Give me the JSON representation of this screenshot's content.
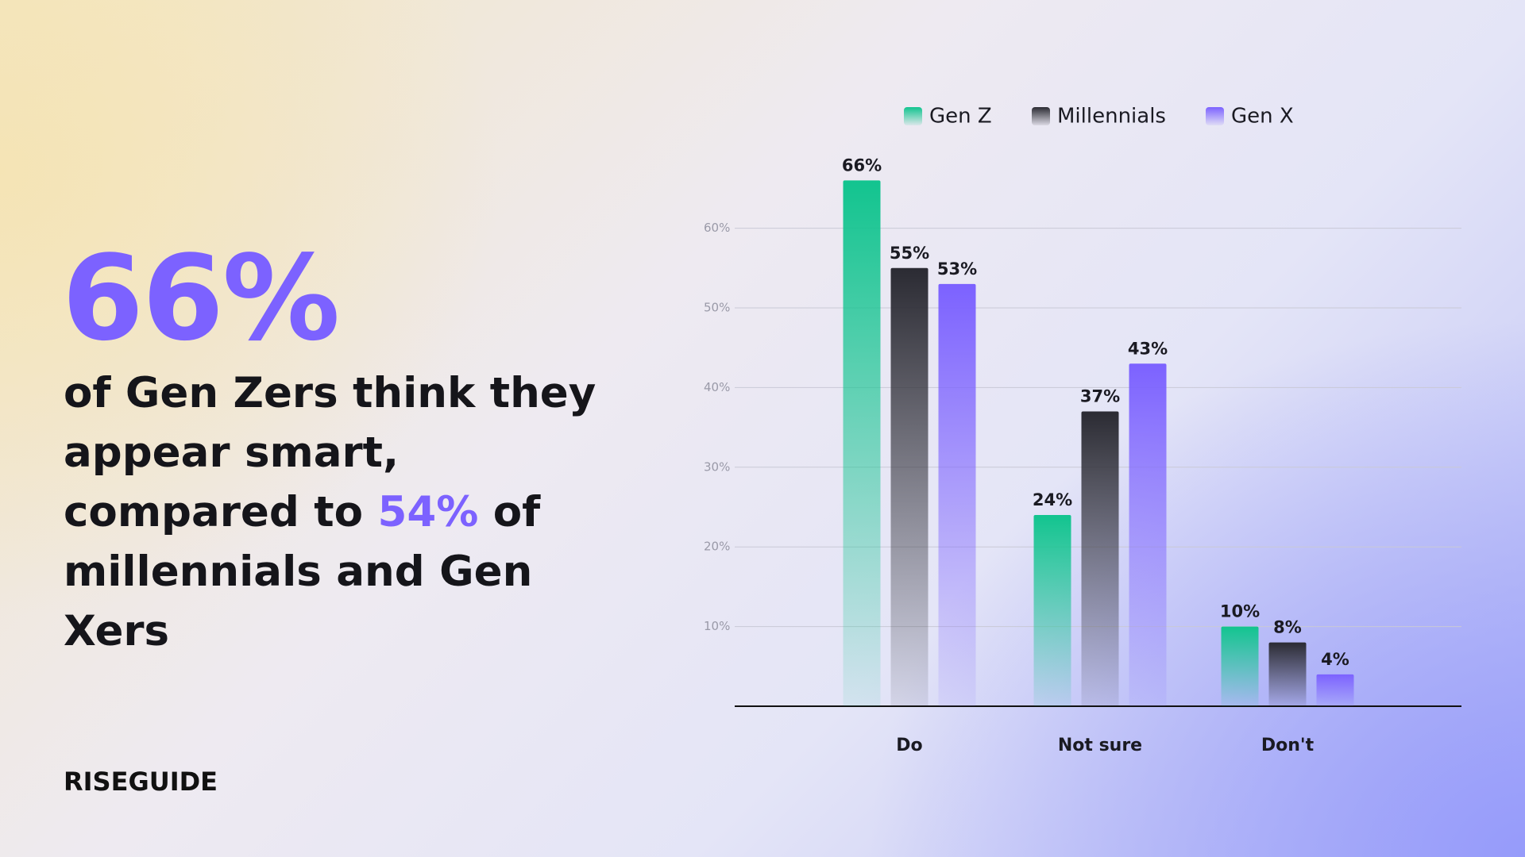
{
  "headline": {
    "stat": "66%",
    "text_before": "of Gen Zers think they appear smart, compared to ",
    "highlight": "54%",
    "text_after": " of millennials and Gen Xers"
  },
  "brand": "RISEGUIDE",
  "chart_data": {
    "type": "bar",
    "categories": [
      "Do",
      "Not sure",
      "Don't"
    ],
    "series": [
      {
        "name": "Gen Z",
        "color": "#12c48f",
        "values": [
          66,
          24,
          10
        ],
        "value_labels": [
          "66%",
          "24%",
          "10%"
        ]
      },
      {
        "name": "Millennials",
        "color": "#2b2b33",
        "values": [
          55,
          37,
          8
        ],
        "value_labels": [
          "55%",
          "37%",
          "8%"
        ]
      },
      {
        "name": "Gen X",
        "color": "#7c62ff",
        "values": [
          53,
          43,
          4
        ],
        "value_labels": [
          "53%",
          "43%",
          "4%"
        ]
      }
    ],
    "ylim": [
      0,
      70
    ],
    "yticks": [
      {
        "value": 10,
        "label": "10%"
      },
      {
        "value": 20,
        "label": "20%"
      },
      {
        "value": 30,
        "label": "30%"
      },
      {
        "value": 40,
        "label": "40%"
      },
      {
        "value": 50,
        "label": "50%"
      },
      {
        "value": 60,
        "label": "60%"
      }
    ],
    "grid": true
  }
}
